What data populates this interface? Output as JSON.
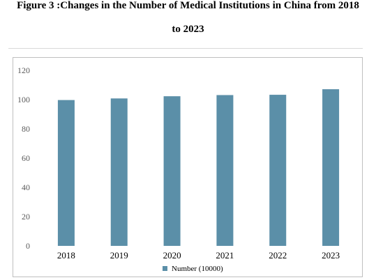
{
  "figure": {
    "title_line_1": "Figure 3 :Changes in the Number of Medical Institutions in China from 2018",
    "title_line_2": "to 2023"
  },
  "chart_data": {
    "type": "bar",
    "categories": [
      "2018",
      "2019",
      "2020",
      "2021",
      "2022",
      "2023"
    ],
    "series": [
      {
        "name": "Number (10000)",
        "values": [
          99.7,
          100.8,
          102.3,
          103.1,
          103.3,
          107.1
        ],
        "color": "#5b8fa8"
      }
    ],
    "ylim": [
      0,
      120
    ],
    "yticks": [
      0,
      20,
      40,
      60,
      80,
      100,
      120
    ],
    "grid": false,
    "legend": "bottom"
  }
}
